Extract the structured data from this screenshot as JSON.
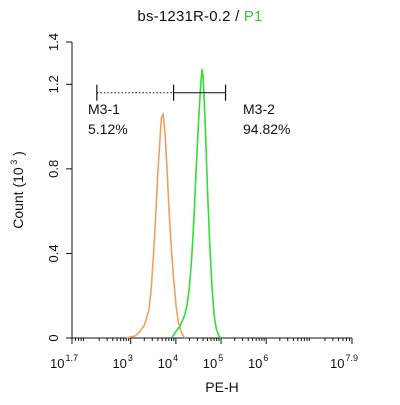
{
  "header": {
    "sample": "bs-1231R-0.2",
    "separator": " / ",
    "gate": "P1",
    "gate_color": "#2ecc2e"
  },
  "chart_data": {
    "type": "line",
    "title": "bs-1231R-0.2 / P1",
    "xlabel": "PE-H",
    "ylabel": "Count (10^3)",
    "x_scale": "log",
    "xlim": [
      1.7,
      7.9
    ],
    "ylim": [
      0,
      1.4
    ],
    "x_ticks": [
      {
        "base": "10",
        "exp": "1.7",
        "value": 1.7
      },
      {
        "base": "10",
        "exp": "3",
        "value": 3
      },
      {
        "base": "10",
        "exp": "4",
        "value": 4
      },
      {
        "base": "10",
        "exp": "5",
        "value": 5
      },
      {
        "base": "10",
        "exp": "6",
        "value": 6
      },
      {
        "base": "10",
        "exp": "7.9",
        "value": 7.9
      }
    ],
    "y_ticks": [
      "0",
      "0.4",
      "0.8",
      "1.2",
      "1.4"
    ],
    "y_tick_values": [
      0,
      0.4,
      0.8,
      1.2,
      1.4
    ],
    "series": [
      {
        "color": "#f0a060",
        "x": [
          2.9,
          3.1,
          3.2,
          3.3,
          3.4,
          3.45,
          3.5,
          3.55,
          3.6,
          3.65,
          3.68,
          3.72,
          3.76,
          3.8,
          3.85,
          3.9,
          3.95,
          4.0,
          4.05,
          4.1,
          4.15,
          4.2
        ],
        "y": [
          0.0,
          0.01,
          0.03,
          0.06,
          0.13,
          0.22,
          0.38,
          0.56,
          0.78,
          0.95,
          1.04,
          1.06,
          0.97,
          0.82,
          0.6,
          0.42,
          0.28,
          0.16,
          0.08,
          0.04,
          0.015,
          0.0
        ]
      },
      {
        "color": "#33dd33",
        "x": [
          3.9,
          4.0,
          4.1,
          4.2,
          4.25,
          4.3,
          4.35,
          4.4,
          4.45,
          4.5,
          4.55,
          4.58,
          4.6,
          4.63,
          4.66,
          4.7,
          4.75,
          4.8,
          4.85,
          4.9,
          4.95,
          5.0
        ],
        "y": [
          0.0,
          0.03,
          0.06,
          0.11,
          0.16,
          0.24,
          0.38,
          0.56,
          0.8,
          1.02,
          1.2,
          1.27,
          1.24,
          1.12,
          0.95,
          0.7,
          0.45,
          0.24,
          0.1,
          0.04,
          0.01,
          0.0
        ]
      }
    ],
    "markers": [
      {
        "name": "M3-1",
        "percent": "5.12%",
        "x_start": 2.25,
        "x_end": 3.95
      },
      {
        "name": "M3-2",
        "percent": "94.82%",
        "x_start": 3.95,
        "x_end": 5.1
      }
    ],
    "marker_y": 1.16
  }
}
